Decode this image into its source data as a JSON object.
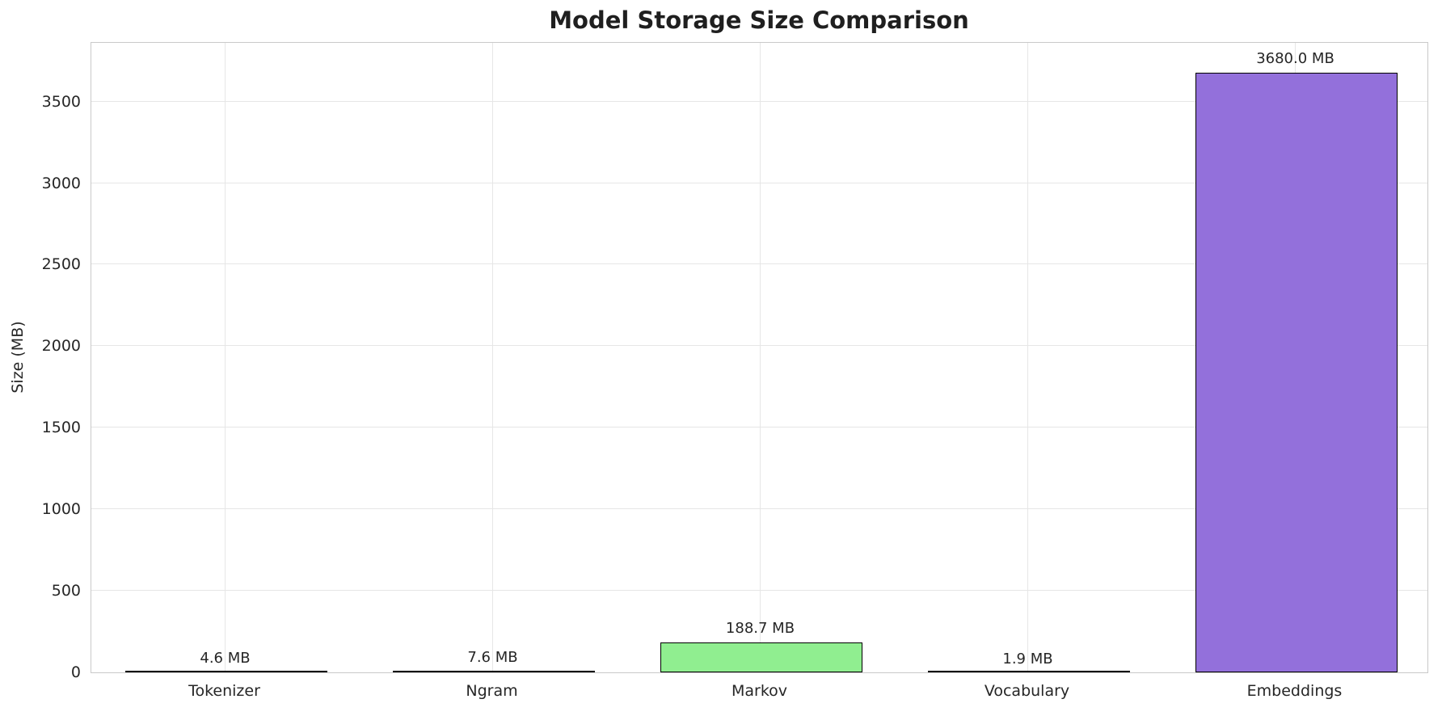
{
  "chart_data": {
    "type": "bar",
    "title": "Model Storage Size Comparison",
    "xlabel": "",
    "ylabel": "Size (MB)",
    "categories": [
      "Tokenizer",
      "Ngram",
      "Markov",
      "Vocabulary",
      "Embeddings"
    ],
    "values": [
      4.6,
      7.6,
      188.7,
      1.9,
      3680.0
    ],
    "value_labels": [
      "4.6 MB",
      "7.6 MB",
      "188.7 MB",
      "1.9 MB",
      "3680.0 MB"
    ],
    "bar_colors": [
      "#87CEEB",
      "#F08080",
      "#90EE90",
      "#FFD700",
      "#9370DB"
    ],
    "bar_edge_color": "#000000",
    "yticks": [
      0,
      500,
      1000,
      1500,
      2000,
      2500,
      3000,
      3500
    ],
    "ylim": [
      0,
      3870
    ],
    "grid": true,
    "legend_position": "none",
    "colors": {
      "background": "#ffffff",
      "grid": "#e6e6e6",
      "spine": "#c9c9c9",
      "tick_text": "#262626",
      "title_text": "#1f1f1f"
    }
  }
}
